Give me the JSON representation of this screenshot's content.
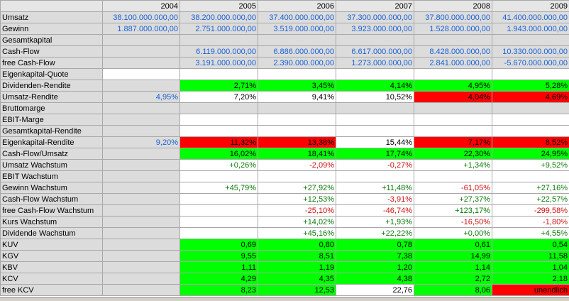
{
  "colors": {
    "green_cell": "#00ff00",
    "red_cell": "#ff0000",
    "label_gray": "#dcdcdc",
    "blue_text": "#1a62d6",
    "green_text": "#0a7a0a",
    "red_text": "#d01010"
  },
  "columns": [
    "",
    "2004",
    "2005",
    "2006",
    "2007",
    "2008",
    "2009"
  ],
  "rows": [
    {
      "label": "Umsatz",
      "cells": [
        {
          "v": "38.100.000.000,00",
          "c": "blue",
          "bg": "gray"
        },
        {
          "v": "38.200.000.000,00",
          "c": "blue",
          "bg": "gray"
        },
        {
          "v": "37.400.000.000,00",
          "c": "blue",
          "bg": "gray"
        },
        {
          "v": "37.300.000.000,00",
          "c": "blue",
          "bg": "gray"
        },
        {
          "v": "37.800.000.000,00",
          "c": "blue",
          "bg": "gray"
        },
        {
          "v": "41.400.000.000,00",
          "c": "blue",
          "bg": "gray"
        }
      ]
    },
    {
      "label": "Gewinn",
      "cells": [
        {
          "v": "1.887.000.000,00",
          "c": "blue",
          "bg": "gray"
        },
        {
          "v": "2.751.000.000,00",
          "c": "blue",
          "bg": "gray"
        },
        {
          "v": "3.519.000.000,00",
          "c": "blue",
          "bg": "gray"
        },
        {
          "v": "3.923.000.000,00",
          "c": "blue",
          "bg": "gray"
        },
        {
          "v": "1.528.000.000,00",
          "c": "blue",
          "bg": "gray"
        },
        {
          "v": "1.943.000.000,00",
          "c": "blue",
          "bg": "gray"
        }
      ]
    },
    {
      "label": "Gesamtkapital",
      "cells": [
        {
          "v": "",
          "c": "black",
          "bg": "gray"
        },
        {
          "v": "",
          "c": "black",
          "bg": "gray"
        },
        {
          "v": "",
          "c": "black",
          "bg": "gray"
        },
        {
          "v": "",
          "c": "black",
          "bg": "gray"
        },
        {
          "v": "",
          "c": "black",
          "bg": "gray"
        },
        {
          "v": "",
          "c": "black",
          "bg": "gray"
        }
      ]
    },
    {
      "label": "Cash-Flow",
      "cells": [
        {
          "v": "",
          "c": "blue",
          "bg": "gray"
        },
        {
          "v": "6.119.000.000,00",
          "c": "blue",
          "bg": "gray"
        },
        {
          "v": "6.886.000.000,00",
          "c": "blue",
          "bg": "gray"
        },
        {
          "v": "6.617.000.000,00",
          "c": "blue",
          "bg": "gray"
        },
        {
          "v": "8.428.000.000,00",
          "c": "blue",
          "bg": "gray"
        },
        {
          "v": "10.330.000.000,00",
          "c": "blue",
          "bg": "gray"
        }
      ]
    },
    {
      "label": "free Cash-Flow",
      "cells": [
        {
          "v": "",
          "c": "blue",
          "bg": "gray"
        },
        {
          "v": "3.191.000.000,00",
          "c": "blue",
          "bg": "gray"
        },
        {
          "v": "2.390.000.000,00",
          "c": "blue",
          "bg": "gray"
        },
        {
          "v": "1.273.000.000,00",
          "c": "blue",
          "bg": "gray"
        },
        {
          "v": "2.841.000.000,00",
          "c": "blue",
          "bg": "gray"
        },
        {
          "v": "-5.670.000.000,00",
          "c": "blue",
          "bg": "gray"
        }
      ]
    },
    {
      "label": "Eigenkapital-Quote",
      "cells": [
        {
          "v": "",
          "c": "black",
          "bg": "white"
        },
        {
          "v": "",
          "c": "black",
          "bg": "white"
        },
        {
          "v": "",
          "c": "black",
          "bg": "white"
        },
        {
          "v": "",
          "c": "black",
          "bg": "white"
        },
        {
          "v": "",
          "c": "black",
          "bg": "white"
        },
        {
          "v": "",
          "c": "black",
          "bg": "white"
        }
      ]
    },
    {
      "label": "Dividenden-Rendite",
      "cells": [
        {
          "v": "",
          "c": "black",
          "bg": "gray"
        },
        {
          "v": "2,71%",
          "c": "black",
          "bg": "green"
        },
        {
          "v": "3,45%",
          "c": "black",
          "bg": "green"
        },
        {
          "v": "4,14%",
          "c": "black",
          "bg": "green"
        },
        {
          "v": "4,95%",
          "c": "black",
          "bg": "green"
        },
        {
          "v": "5,28%",
          "c": "black",
          "bg": "green"
        }
      ]
    },
    {
      "label": "Umsatz-Rendite",
      "cells": [
        {
          "v": "4,95%",
          "c": "blue",
          "bg": "gray"
        },
        {
          "v": "7,20%",
          "c": "black",
          "bg": "white"
        },
        {
          "v": "9,41%",
          "c": "black",
          "bg": "white"
        },
        {
          "v": "10,52%",
          "c": "black",
          "bg": "white"
        },
        {
          "v": "4,04%",
          "c": "black",
          "bg": "red"
        },
        {
          "v": "4,69%",
          "c": "black",
          "bg": "red"
        }
      ]
    },
    {
      "label": "Bruttomarge",
      "cells": [
        {
          "v": "",
          "c": "black",
          "bg": "gray"
        },
        {
          "v": "",
          "c": "black",
          "bg": "gray"
        },
        {
          "v": "",
          "c": "black",
          "bg": "gray"
        },
        {
          "v": "",
          "c": "black",
          "bg": "gray"
        },
        {
          "v": "",
          "c": "black",
          "bg": "gray"
        },
        {
          "v": "",
          "c": "black",
          "bg": "gray"
        }
      ]
    },
    {
      "label": "EBIT-Marge",
      "cells": [
        {
          "v": "",
          "c": "black",
          "bg": "gray"
        },
        {
          "v": "",
          "c": "black",
          "bg": "white"
        },
        {
          "v": "",
          "c": "black",
          "bg": "white"
        },
        {
          "v": "",
          "c": "black",
          "bg": "white"
        },
        {
          "v": "",
          "c": "black",
          "bg": "white"
        },
        {
          "v": "",
          "c": "black",
          "bg": "white"
        }
      ]
    },
    {
      "label": "Gesamtkapital-Rendite",
      "cells": [
        {
          "v": "",
          "c": "black",
          "bg": "gray"
        },
        {
          "v": "",
          "c": "black",
          "bg": "white"
        },
        {
          "v": "",
          "c": "black",
          "bg": "white"
        },
        {
          "v": "",
          "c": "black",
          "bg": "white"
        },
        {
          "v": "",
          "c": "black",
          "bg": "white"
        },
        {
          "v": "",
          "c": "black",
          "bg": "white"
        }
      ]
    },
    {
      "label": "Eigenkapital-Rendite",
      "cells": [
        {
          "v": "9,20%",
          "c": "blue",
          "bg": "gray"
        },
        {
          "v": "11,32%",
          "c": "black",
          "bg": "red"
        },
        {
          "v": "13,38%",
          "c": "black",
          "bg": "red"
        },
        {
          "v": "15,44%",
          "c": "black",
          "bg": "white"
        },
        {
          "v": "7,17%",
          "c": "black",
          "bg": "red"
        },
        {
          "v": "8,52%",
          "c": "black",
          "bg": "red"
        }
      ]
    },
    {
      "label": "Cash-Flow/Umsatz",
      "cells": [
        {
          "v": "",
          "c": "black",
          "bg": "gray"
        },
        {
          "v": "16,02%",
          "c": "black",
          "bg": "green"
        },
        {
          "v": "18,41%",
          "c": "black",
          "bg": "green"
        },
        {
          "v": "17,74%",
          "c": "black",
          "bg": "green"
        },
        {
          "v": "22,30%",
          "c": "black",
          "bg": "green"
        },
        {
          "v": "24,95%",
          "c": "black",
          "bg": "green"
        }
      ]
    },
    {
      "label": "Umsatz Wachstum",
      "cells": [
        {
          "v": "",
          "c": "black",
          "bg": "gray"
        },
        {
          "v": "+0,26%",
          "c": "green",
          "bg": "white"
        },
        {
          "v": "-2,09%",
          "c": "red",
          "bg": "white"
        },
        {
          "v": "-0,27%",
          "c": "red",
          "bg": "white"
        },
        {
          "v": "+1,34%",
          "c": "green",
          "bg": "white"
        },
        {
          "v": "+9,52%",
          "c": "green",
          "bg": "white"
        }
      ]
    },
    {
      "label": "EBIT Wachstum",
      "cells": [
        {
          "v": "",
          "c": "black",
          "bg": "gray"
        },
        {
          "v": "",
          "c": "black",
          "bg": "white"
        },
        {
          "v": "",
          "c": "black",
          "bg": "white"
        },
        {
          "v": "",
          "c": "black",
          "bg": "white"
        },
        {
          "v": "",
          "c": "black",
          "bg": "white"
        },
        {
          "v": "",
          "c": "black",
          "bg": "white"
        }
      ]
    },
    {
      "label": "Gewinn Wachstum",
      "cells": [
        {
          "v": "",
          "c": "black",
          "bg": "gray"
        },
        {
          "v": "+45,79%",
          "c": "green",
          "bg": "white"
        },
        {
          "v": "+27,92%",
          "c": "green",
          "bg": "white"
        },
        {
          "v": "+11,48%",
          "c": "green",
          "bg": "white"
        },
        {
          "v": "-61,05%",
          "c": "red",
          "bg": "white"
        },
        {
          "v": "+27,16%",
          "c": "green",
          "bg": "white"
        }
      ]
    },
    {
      "label": "Cash-Flow Wachstum",
      "cells": [
        {
          "v": "",
          "c": "black",
          "bg": "gray"
        },
        {
          "v": "",
          "c": "black",
          "bg": "white"
        },
        {
          "v": "+12,53%",
          "c": "green",
          "bg": "white"
        },
        {
          "v": "-3,91%",
          "c": "red",
          "bg": "white"
        },
        {
          "v": "+27,37%",
          "c": "green",
          "bg": "white"
        },
        {
          "v": "+22,57%",
          "c": "green",
          "bg": "white"
        }
      ]
    },
    {
      "label": "free Cash-Flow Wachstum",
      "cells": [
        {
          "v": "",
          "c": "black",
          "bg": "gray"
        },
        {
          "v": "",
          "c": "black",
          "bg": "white"
        },
        {
          "v": "-25,10%",
          "c": "red",
          "bg": "white"
        },
        {
          "v": "-46,74%",
          "c": "red",
          "bg": "white"
        },
        {
          "v": "+123,17%",
          "c": "green",
          "bg": "white"
        },
        {
          "v": "-299,58%",
          "c": "red",
          "bg": "white"
        }
      ]
    },
    {
      "label": "Kurs Wachstum",
      "cells": [
        {
          "v": "",
          "c": "black",
          "bg": "gray"
        },
        {
          "v": "",
          "c": "black",
          "bg": "white"
        },
        {
          "v": "+14,02%",
          "c": "green",
          "bg": "white"
        },
        {
          "v": "+1,93%",
          "c": "green",
          "bg": "white"
        },
        {
          "v": "-16,50%",
          "c": "red",
          "bg": "white"
        },
        {
          "v": "-1,80%",
          "c": "red",
          "bg": "white"
        }
      ]
    },
    {
      "label": "Dividende Wachstum",
      "cells": [
        {
          "v": "",
          "c": "black",
          "bg": "gray"
        },
        {
          "v": "",
          "c": "black",
          "bg": "white"
        },
        {
          "v": "+45,16%",
          "c": "green",
          "bg": "white"
        },
        {
          "v": "+22,22%",
          "c": "green",
          "bg": "white"
        },
        {
          "v": "+0,00%",
          "c": "green",
          "bg": "white"
        },
        {
          "v": "+4,55%",
          "c": "green",
          "bg": "white"
        }
      ]
    },
    {
      "label": "KUV",
      "cells": [
        {
          "v": "",
          "c": "black",
          "bg": "gray"
        },
        {
          "v": "0,69",
          "c": "black",
          "bg": "green"
        },
        {
          "v": "0,80",
          "c": "black",
          "bg": "green"
        },
        {
          "v": "0,78",
          "c": "black",
          "bg": "green"
        },
        {
          "v": "0,61",
          "c": "black",
          "bg": "green"
        },
        {
          "v": "0,54",
          "c": "black",
          "bg": "green"
        }
      ]
    },
    {
      "label": "KGV",
      "cells": [
        {
          "v": "",
          "c": "black",
          "bg": "gray"
        },
        {
          "v": "9,55",
          "c": "black",
          "bg": "green"
        },
        {
          "v": "8,51",
          "c": "black",
          "bg": "green"
        },
        {
          "v": "7,38",
          "c": "black",
          "bg": "green"
        },
        {
          "v": "14,99",
          "c": "black",
          "bg": "green"
        },
        {
          "v": "11,58",
          "c": "black",
          "bg": "green"
        }
      ]
    },
    {
      "label": "KBV",
      "cells": [
        {
          "v": "",
          "c": "black",
          "bg": "gray"
        },
        {
          "v": "1,11",
          "c": "black",
          "bg": "green"
        },
        {
          "v": "1,19",
          "c": "black",
          "bg": "green"
        },
        {
          "v": "1,20",
          "c": "black",
          "bg": "green"
        },
        {
          "v": "1,14",
          "c": "black",
          "bg": "green"
        },
        {
          "v": "1,04",
          "c": "black",
          "bg": "green"
        }
      ]
    },
    {
      "label": "KCV",
      "cells": [
        {
          "v": "",
          "c": "black",
          "bg": "gray"
        },
        {
          "v": "4,29",
          "c": "black",
          "bg": "green"
        },
        {
          "v": "4,35",
          "c": "black",
          "bg": "green"
        },
        {
          "v": "4,38",
          "c": "black",
          "bg": "green"
        },
        {
          "v": "2,72",
          "c": "black",
          "bg": "green"
        },
        {
          "v": "2,18",
          "c": "black",
          "bg": "green"
        }
      ]
    },
    {
      "label": "free KCV",
      "cells": [
        {
          "v": "",
          "c": "black",
          "bg": "gray"
        },
        {
          "v": "8,23",
          "c": "black",
          "bg": "green"
        },
        {
          "v": "12,53",
          "c": "black",
          "bg": "green"
        },
        {
          "v": "22,76",
          "c": "black",
          "bg": "white"
        },
        {
          "v": "8,06",
          "c": "black",
          "bg": "green"
        },
        {
          "v": "unendlich",
          "c": "black",
          "bg": "red"
        }
      ]
    }
  ]
}
